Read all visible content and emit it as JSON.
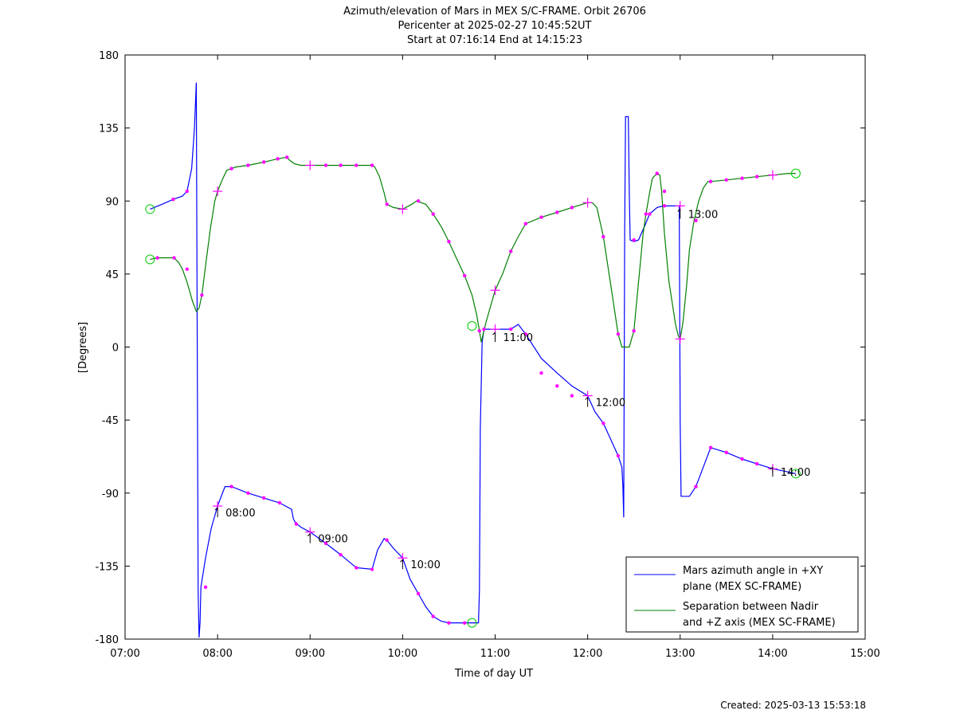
{
  "chart_data": {
    "type": "line",
    "title_lines": [
      "Azimuth/elevation of Mars in MEX S/C-FRAME.  Orbit 26706",
      "Pericenter at 2025-02-27 10:45:52UT",
      "Start at 07:16:14 End at 14:15:23"
    ],
    "xlabel": "Time of day UT",
    "ylabel": "[Degrees]",
    "footer": "Created: 2025-03-13 15:53:18",
    "xlim": [
      7.0,
      15.0
    ],
    "ylim": [
      -180,
      180
    ],
    "xticks": [
      7,
      8,
      9,
      10,
      11,
      12,
      13,
      14,
      15
    ],
    "xtick_labels": [
      "07:00",
      "08:00",
      "09:00",
      "10:00",
      "11:00",
      "12:00",
      "13:00",
      "14:00",
      "15:00"
    ],
    "yticks": [
      180,
      135,
      90,
      45,
      0,
      -45,
      -90,
      -135,
      -180
    ],
    "ytick_labels": [
      "180",
      "135",
      "90",
      "45",
      "0",
      "-45",
      "-90",
      "-135",
      "-180"
    ],
    "grid": false,
    "legend_position": "bottom-right",
    "hour_labels": [
      {
        "text": "08:00",
        "x": 8.0,
        "y": -98
      },
      {
        "text": "09:00",
        "x": 9.0,
        "y": -114
      },
      {
        "text": "10:00",
        "x": 10.0,
        "y": -130
      },
      {
        "text": "11:00",
        "x": 11.0,
        "y": 10
      },
      {
        "text": "12:00",
        "x": 12.0,
        "y": -30
      },
      {
        "text": "13:00",
        "x": 13.0,
        "y": 86
      },
      {
        "text": "14:00",
        "x": 14.0,
        "y": -73
      }
    ],
    "series": [
      {
        "name": "Mars azimuth angle in +XY plane (MEX SC-FRAME)",
        "legend_lines": [
          "Mars azimuth angle in +XY",
          "plane (MEX SC-FRAME)"
        ],
        "color": "#0000ff",
        "x": [
          7.27,
          7.4,
          7.52,
          7.62,
          7.67,
          7.72,
          7.75,
          7.77,
          7.79,
          7.8,
          7.81,
          7.82,
          7.87,
          7.93,
          8.0,
          8.08,
          8.15,
          8.33,
          8.5,
          8.67,
          8.8,
          8.82,
          8.85,
          8.88,
          8.9,
          9.0,
          9.17,
          9.33,
          9.5,
          9.67,
          9.73,
          9.8,
          9.83,
          9.9,
          10.0,
          10.08,
          10.17,
          10.25,
          10.33,
          10.42,
          10.5,
          10.67,
          10.82,
          10.83,
          10.84,
          10.86,
          10.88,
          11.0,
          11.17,
          11.25,
          11.33,
          11.5,
          11.67,
          11.83,
          12.0,
          12.08,
          12.17,
          12.25,
          12.33,
          12.37,
          12.38,
          12.39,
          12.4,
          12.41,
          12.42,
          12.44,
          12.45,
          12.46,
          12.5,
          12.55,
          12.58,
          12.62,
          12.67,
          12.75,
          12.82,
          12.88,
          12.95,
          12.99,
          13.0,
          13.01,
          13.02,
          13.03,
          13.1,
          13.17,
          13.25,
          13.33,
          13.5,
          13.67,
          13.83,
          14.0,
          14.17,
          14.25
        ],
        "y": [
          85,
          88,
          91,
          93,
          96,
          110,
          135,
          163,
          -150,
          -179,
          -170,
          -148,
          -130,
          -112,
          -98,
          -86,
          -86,
          -90,
          -93,
          -96,
          -100,
          -106,
          -109,
          -110,
          -111,
          -114,
          -121,
          -128,
          -136,
          -137,
          -125,
          -118,
          -119,
          -124,
          -130,
          -143,
          -152,
          -160,
          -166,
          -169,
          -170,
          -170,
          -170,
          -150,
          -50,
          3,
          11,
          11,
          11,
          14,
          8,
          -7,
          -16,
          -24,
          -30,
          -40,
          -47,
          -57,
          -67,
          -74,
          -85,
          -105,
          70,
          142,
          142,
          142,
          95,
          66,
          65,
          66,
          70,
          75,
          82,
          86,
          87,
          87,
          87,
          87,
          -46,
          -92,
          -92,
          -92,
          -92,
          -86,
          -74,
          -62,
          -65,
          -69,
          -72,
          -75,
          -77,
          -78
        ]
      },
      {
        "name": "Separation between Nadir and +Z axis (MEX SC-FRAME)",
        "legend_lines": [
          "Separation between Nadir",
          "and +Z axis (MEX SC-FRAME)"
        ],
        "color": "#008000",
        "x": [
          7.27,
          7.35,
          7.45,
          7.53,
          7.58,
          7.62,
          7.67,
          7.73,
          7.77,
          7.8,
          7.83,
          7.87,
          7.92,
          7.97,
          8.0,
          8.05,
          8.1,
          8.2,
          8.33,
          8.5,
          8.65,
          8.75,
          8.78,
          8.83,
          8.9,
          9.0,
          9.17,
          9.33,
          9.5,
          9.67,
          9.7,
          9.75,
          9.8,
          9.83,
          9.9,
          10.0,
          10.1,
          10.15,
          10.25,
          10.33,
          10.42,
          10.5,
          10.58,
          10.67,
          10.75,
          10.8,
          10.83,
          10.85,
          10.9,
          11.0,
          11.08,
          11.17,
          11.25,
          11.33,
          11.5,
          11.67,
          11.83,
          12.0,
          12.05,
          12.1,
          12.17,
          12.25,
          12.33,
          12.37,
          12.4,
          12.42,
          12.45,
          12.5,
          12.55,
          12.6,
          12.63,
          12.67,
          12.7,
          12.75,
          12.78,
          12.8,
          12.83,
          12.88,
          12.92,
          12.95,
          12.98,
          13.0,
          13.03,
          13.07,
          13.1,
          13.15,
          13.2,
          13.25,
          13.3,
          13.33,
          13.5,
          13.67,
          13.83,
          14.0,
          14.17,
          14.25
        ],
        "y": [
          54,
          55,
          55,
          55,
          52,
          48,
          40,
          28,
          22,
          24,
          32,
          50,
          72,
          90,
          96,
          103,
          109,
          111,
          112,
          114,
          116,
          117,
          115,
          113,
          112,
          112,
          112,
          112,
          112,
          112,
          111,
          105,
          95,
          88,
          86,
          85,
          88,
          90,
          88,
          82,
          74,
          65,
          55,
          44,
          32,
          20,
          10,
          3,
          15,
          35,
          45,
          59,
          68,
          76,
          80,
          83,
          86,
          89,
          89,
          86,
          68,
          38,
          8,
          0,
          0,
          0,
          0,
          10,
          40,
          70,
          82,
          95,
          104,
          107,
          106,
          96,
          70,
          40,
          25,
          14,
          7,
          5,
          15,
          38,
          60,
          78,
          90,
          98,
          102,
          102,
          103,
          104,
          105,
          106,
          107,
          107
        ]
      }
    ],
    "series_markers": [
      {
        "x": [
          7.52,
          7.67,
          7.87,
          8.0,
          8.15,
          8.33,
          8.5,
          8.67,
          8.85,
          9.0,
          9.17,
          9.33,
          9.5,
          9.67,
          9.83,
          10.0,
          10.17,
          10.33,
          10.5,
          10.67,
          10.88,
          11.0,
          11.17,
          11.33,
          11.5,
          11.67,
          11.83,
          12.0,
          12.17,
          12.33,
          12.5,
          12.67,
          12.83,
          13.0,
          13.17,
          13.33,
          13.5,
          13.67,
          13.83,
          14.0
        ],
        "y": [
          91,
          96,
          -148,
          -98,
          -86,
          -90,
          -93,
          -96,
          -109,
          -114,
          -121,
          -128,
          -136,
          -137,
          -119,
          -130,
          -152,
          -166,
          -170,
          -170,
          11,
          11,
          11,
          8,
          -16,
          -24,
          -30,
          -30,
          -47,
          -67,
          66,
          82,
          87,
          87,
          -86,
          -62,
          -65,
          -69,
          -72,
          -75
        ]
      },
      {
        "x": [
          7.35,
          7.53,
          7.67,
          7.83,
          8.0,
          8.15,
          8.33,
          8.5,
          8.65,
          8.75,
          9.0,
          9.17,
          9.33,
          9.5,
          9.67,
          9.83,
          10.0,
          10.17,
          10.33,
          10.5,
          10.67,
          10.83,
          11.0,
          11.17,
          11.33,
          11.5,
          11.67,
          11.83,
          12.0,
          12.17,
          12.33,
          12.5,
          12.63,
          12.75,
          12.83,
          13.0,
          13.17,
          13.33,
          13.5,
          13.67,
          13.83,
          14.0
        ],
        "y": [
          55,
          55,
          48,
          32,
          96,
          110,
          112,
          114,
          116,
          117,
          112,
          112,
          112,
          112,
          112,
          88,
          85,
          90,
          82,
          65,
          44,
          10,
          35,
          59,
          76,
          80,
          83,
          86,
          89,
          68,
          8,
          10,
          82,
          107,
          96,
          5,
          78,
          102,
          103,
          104,
          105,
          106
        ]
      }
    ],
    "start_end_circles": [
      {
        "x": 7.27,
        "y": 85
      },
      {
        "x": 7.27,
        "y": 54
      },
      {
        "x": 10.75,
        "y": 13
      },
      {
        "x": 10.75,
        "y": -170
      },
      {
        "x": 14.25,
        "y": 107
      },
      {
        "x": 14.25,
        "y": -78
      }
    ]
  }
}
